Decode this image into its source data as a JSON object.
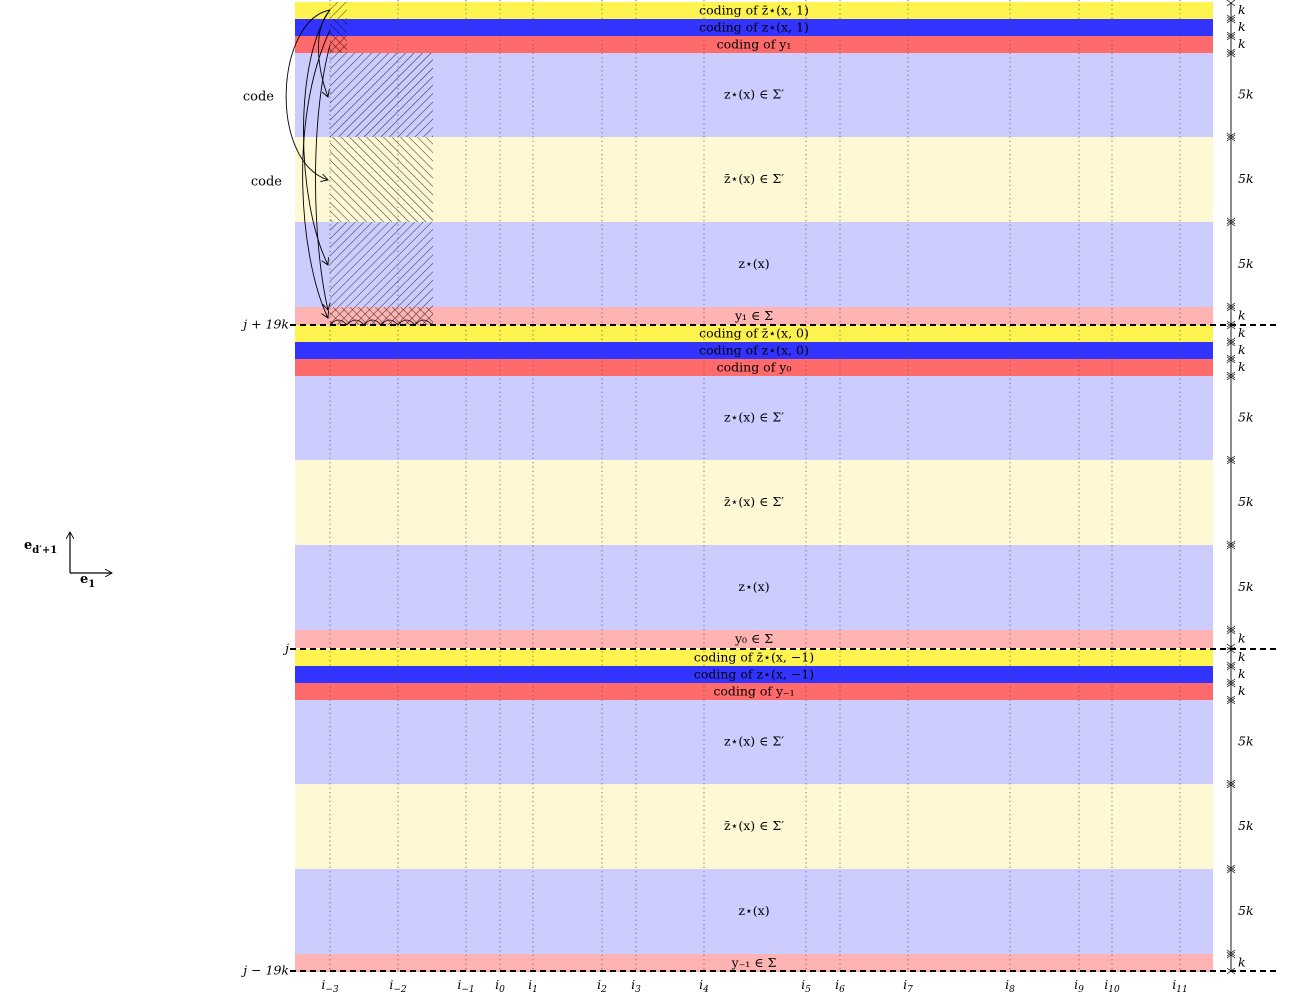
{
  "code_labels": [
    "code",
    "code"
  ],
  "axes": {
    "vertical": "e_{d'+1}",
    "horizontal": "e_1"
  },
  "colors": {
    "yellow": "#fff44f",
    "blue": "#3333ff",
    "red": "#ff6b6b",
    "lavender": "#ccccff",
    "cream": "#fff8d4",
    "pink": "#ffb3b3"
  },
  "column_labels": [
    "i_{-3}",
    "i_{-2}",
    "i_{-1}",
    "i_0",
    "i_1",
    "i_2",
    "i_3",
    "i_4",
    "i_5",
    "i_6",
    "i_7",
    "i_8",
    "i_9",
    "i_{10}",
    "i_{11}"
  ],
  "row_labels": [
    "j + 19k",
    "j",
    "j − 19k"
  ],
  "blocks": [
    {
      "bands": [
        {
          "color": "yellow",
          "label": "coding of z̄⋆(x, 1)",
          "size": "k"
        },
        {
          "color": "blue",
          "label": "coding of z⋆(x, 1)",
          "size": "k"
        },
        {
          "color": "red",
          "label": "coding of y₁",
          "size": "k"
        },
        {
          "color": "lavender",
          "label": "z⋆(x) ∈ Σ′",
          "size": "5k"
        },
        {
          "color": "cream",
          "label": "z̄⋆(x) ∈ Σ′",
          "size": "5k"
        },
        {
          "color": "lavender",
          "label": "z⋆(x)",
          "size": "5k"
        },
        {
          "color": "pink",
          "label": "y₁ ∈ Σ",
          "size": "k"
        }
      ]
    },
    {
      "bands": [
        {
          "color": "yellow",
          "label": "coding of z̄⋆(x, 0)",
          "size": "k"
        },
        {
          "color": "blue",
          "label": "coding of z⋆(x, 0)",
          "size": "k"
        },
        {
          "color": "red",
          "label": "coding of y₀",
          "size": "k"
        },
        {
          "color": "lavender",
          "label": "z⋆(x) ∈ Σ′",
          "size": "5k"
        },
        {
          "color": "cream",
          "label": "z̄⋆(x) ∈ Σ′",
          "size": "5k"
        },
        {
          "color": "lavender",
          "label": "z⋆(x)",
          "size": "5k"
        },
        {
          "color": "pink",
          "label": "y₀ ∈ Σ",
          "size": "k"
        }
      ]
    },
    {
      "bands": [
        {
          "color": "yellow",
          "label": "coding of z̄⋆(x, −1)",
          "size": "k"
        },
        {
          "color": "blue",
          "label": "coding of z⋆(x, −1)",
          "size": "k"
        },
        {
          "color": "red",
          "label": "coding of y₋₁",
          "size": "k"
        },
        {
          "color": "lavender",
          "label": "z⋆(x) ∈ Σ′",
          "size": "5k"
        },
        {
          "color": "cream",
          "label": "z̄⋆(x) ∈ Σ′",
          "size": "5k"
        },
        {
          "color": "lavender",
          "label": "z⋆(x)",
          "size": "5k"
        },
        {
          "color": "pink",
          "label": "y₋₁ ∈ Σ",
          "size": "k"
        }
      ]
    }
  ]
}
